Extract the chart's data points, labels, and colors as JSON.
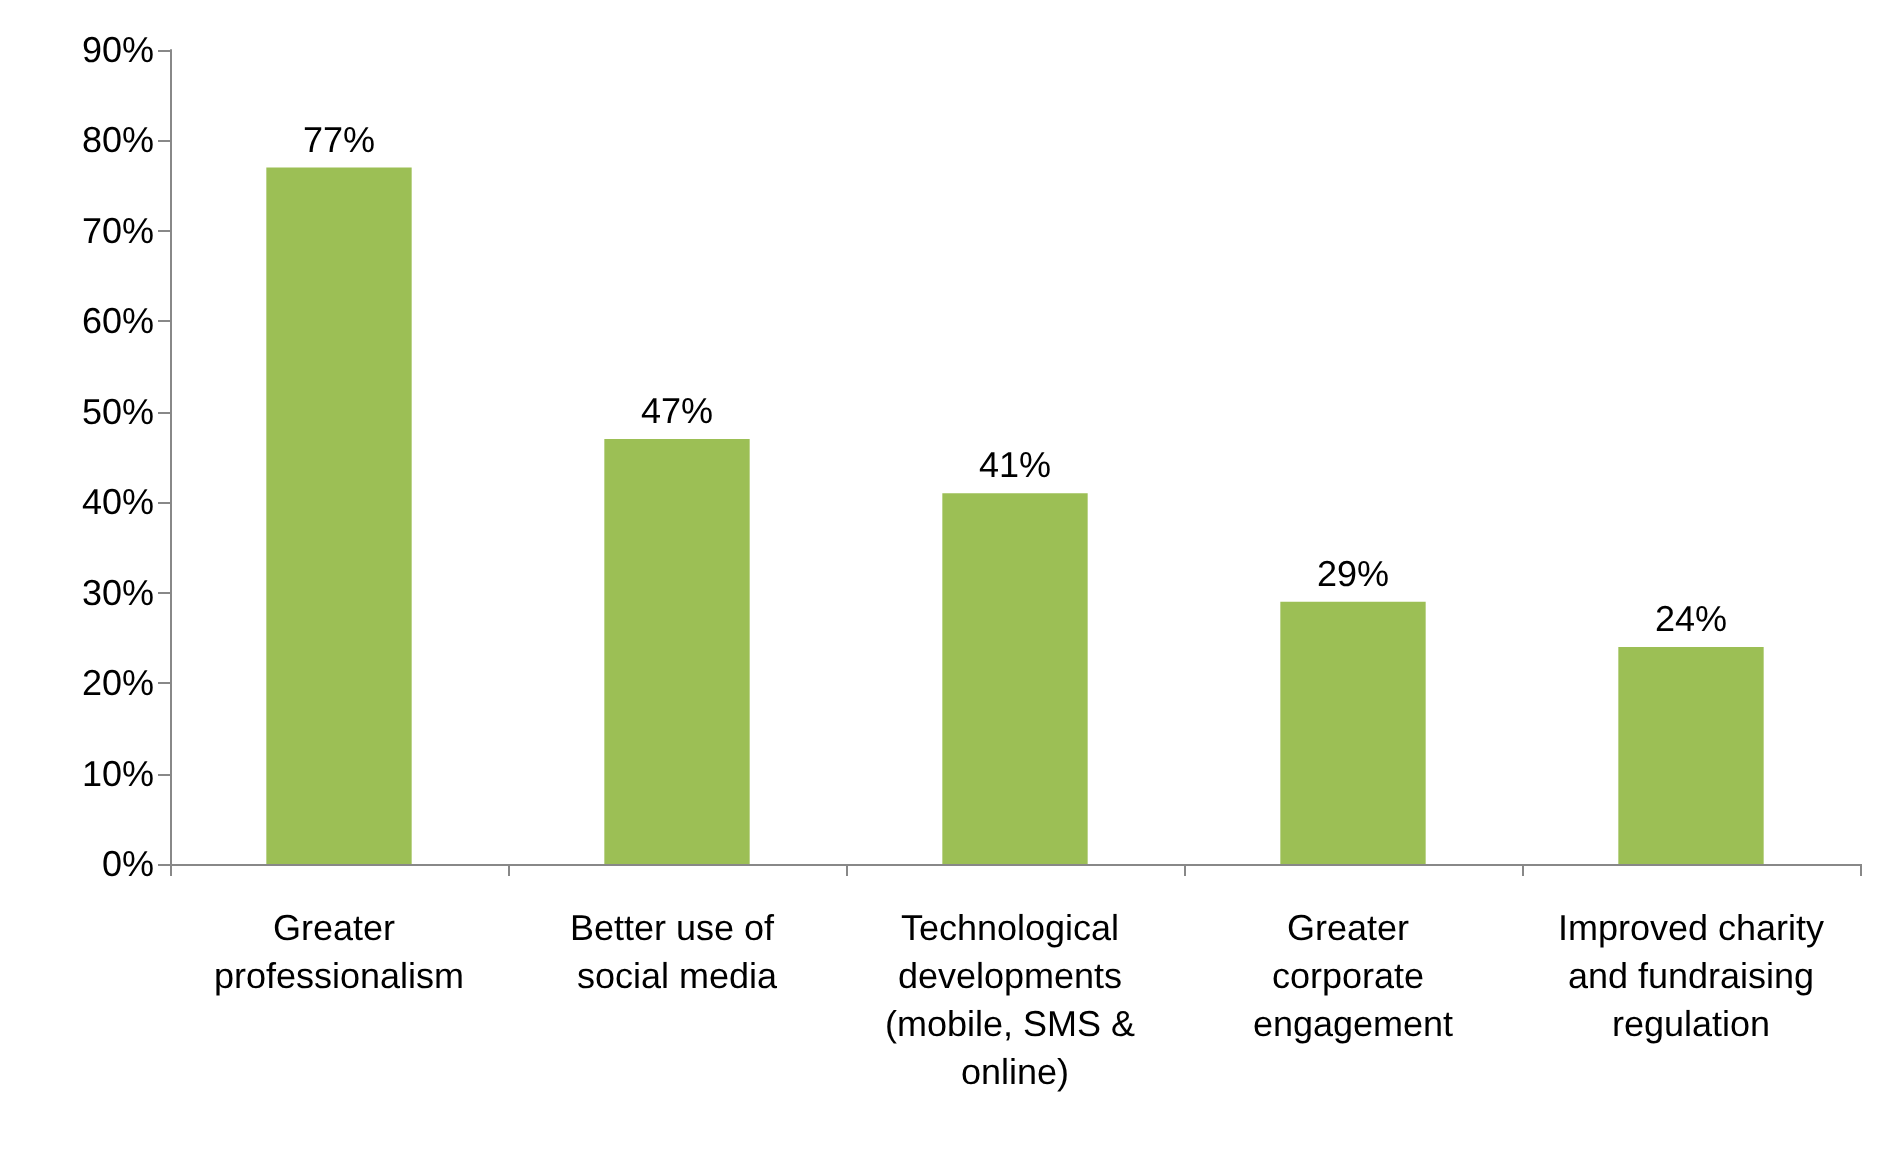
{
  "chart_data": {
    "type": "bar",
    "categories": [
      "Greater professionalism",
      "Better use of social media",
      "Technological developments (mobile, SMS & online)",
      "Greater corporate engagement",
      "Improved charity and fundraising regulation"
    ],
    "values": [
      77,
      47,
      41,
      29,
      24
    ],
    "value_labels": [
      "77%",
      "47%",
      "41%",
      "29%",
      "24%"
    ],
    "color": "#9cbf55",
    "ylim": [
      0,
      90
    ],
    "yticks": [
      {
        "value": 0,
        "label": "0%"
      },
      {
        "value": 10,
        "label": "10%"
      },
      {
        "value": 20,
        "label": "20%"
      },
      {
        "value": 30,
        "label": "30%"
      },
      {
        "value": 40,
        "label": "40%"
      },
      {
        "value": 50,
        "label": "50%"
      },
      {
        "value": 60,
        "label": "60%"
      },
      {
        "value": 70,
        "label": "70%"
      },
      {
        "value": 80,
        "label": "80%"
      },
      {
        "value": 90,
        "label": "90%"
      }
    ],
    "grid": false
  }
}
